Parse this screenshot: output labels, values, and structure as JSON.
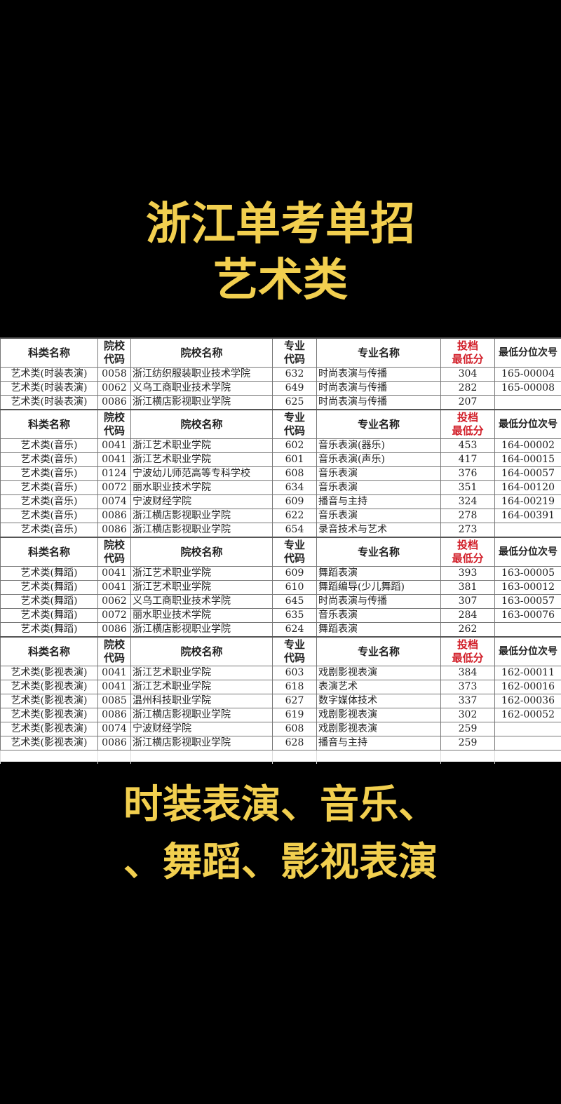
{
  "title": {
    "line1": "浙江单考单招",
    "line2": "艺术类"
  },
  "caption": {
    "line1": "时装表演、音乐、",
    "line2": "、舞蹈、影视表演"
  },
  "colors": {
    "title_text": "#f2cf4f",
    "background": "#000000",
    "header_score": "#d2202a"
  },
  "table": {
    "headers": [
      "科类名称",
      "院校\n代码",
      "院校名称",
      "专业\n代码",
      "专业名称",
      "投档\n最低分",
      "最低分位次号"
    ],
    "sections": [
      {
        "rows": [
          [
            "艺术类(时装表演)",
            "0058",
            "浙江纺织服装职业技术学院",
            "632",
            "时尚表演与传播",
            "304",
            "165-00004"
          ],
          [
            "艺术类(时装表演)",
            "0062",
            "义乌工商职业技术学院",
            "649",
            "时尚表演与传播",
            "282",
            "165-00008"
          ],
          [
            "艺术类(时装表演)",
            "0086",
            "浙江横店影视职业学院",
            "625",
            "时尚表演与传播",
            "207",
            ""
          ]
        ]
      },
      {
        "rows": [
          [
            "艺术类(音乐)",
            "0041",
            "浙江艺术职业学院",
            "602",
            "音乐表演(器乐)",
            "453",
            "164-00002"
          ],
          [
            "艺术类(音乐)",
            "0041",
            "浙江艺术职业学院",
            "601",
            "音乐表演(声乐)",
            "417",
            "164-00015"
          ],
          [
            "艺术类(音乐)",
            "0124",
            "宁波幼儿师范高等专科学校",
            "608",
            "音乐表演",
            "376",
            "164-00057"
          ],
          [
            "艺术类(音乐)",
            "0072",
            "丽水职业技术学院",
            "634",
            "音乐表演",
            "351",
            "164-00120"
          ],
          [
            "艺术类(音乐)",
            "0074",
            "宁波财经学院",
            "609",
            "播音与主持",
            "324",
            "164-00219"
          ],
          [
            "艺术类(音乐)",
            "0086",
            "浙江横店影视职业学院",
            "622",
            "音乐表演",
            "278",
            "164-00391"
          ],
          [
            "艺术类(音乐)",
            "0086",
            "浙江横店影视职业学院",
            "654",
            "录音技术与艺术",
            "273",
            ""
          ]
        ]
      },
      {
        "rows": [
          [
            "艺术类(舞蹈)",
            "0041",
            "浙江艺术职业学院",
            "609",
            "舞蹈表演",
            "393",
            "163-00005"
          ],
          [
            "艺术类(舞蹈)",
            "0041",
            "浙江艺术职业学院",
            "610",
            "舞蹈编导(少儿舞蹈)",
            "381",
            "163-00012"
          ],
          [
            "艺术类(舞蹈)",
            "0062",
            "义乌工商职业技术学院",
            "645",
            "时尚表演与传播",
            "307",
            "163-00057"
          ],
          [
            "艺术类(舞蹈)",
            "0072",
            "丽水职业技术学院",
            "635",
            "音乐表演",
            "284",
            "163-00076"
          ],
          [
            "艺术类(舞蹈)",
            "0086",
            "浙江横店影视职业学院",
            "624",
            "舞蹈表演",
            "262",
            ""
          ]
        ]
      },
      {
        "rows": [
          [
            "艺术类(影视表演)",
            "0041",
            "浙江艺术职业学院",
            "603",
            "戏剧影视表演",
            "384",
            "162-00011"
          ],
          [
            "艺术类(影视表演)",
            "0041",
            "浙江艺术职业学院",
            "618",
            "表演艺术",
            "373",
            "162-00016"
          ],
          [
            "艺术类(影视表演)",
            "0085",
            "温州科技职业学院",
            "627",
            "数字媒体技术",
            "337",
            "162-00036"
          ],
          [
            "艺术类(影视表演)",
            "0086",
            "浙江横店影视职业学院",
            "619",
            "戏剧影视表演",
            "302",
            "162-00052"
          ],
          [
            "艺术类(影视表演)",
            "0074",
            "宁波财经学院",
            "608",
            "戏剧影视表演",
            "259",
            ""
          ],
          [
            "艺术类(影视表演)",
            "0086",
            "浙江横店影视职业学院",
            "628",
            "播音与主持",
            "259",
            ""
          ]
        ]
      }
    ]
  }
}
